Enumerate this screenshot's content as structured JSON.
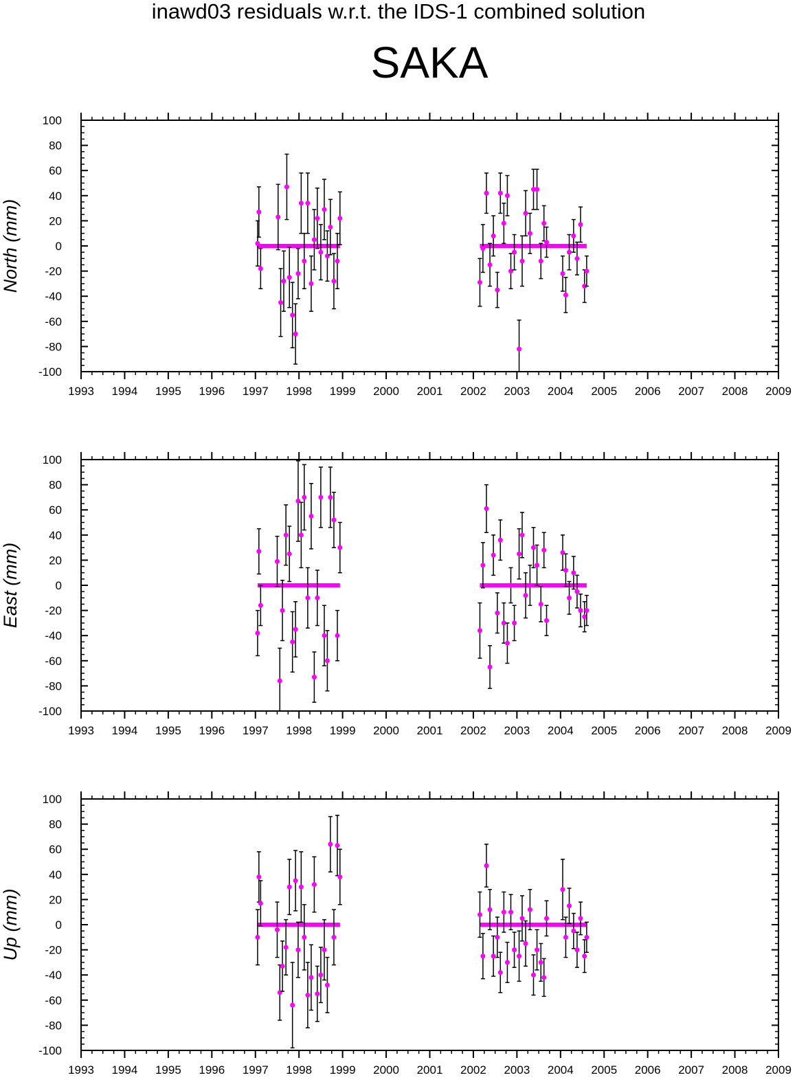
{
  "title": "inawd03 residuals w.r.t. the IDS-1 combined solution",
  "subtitle": "SAKA",
  "colors": {
    "marker": "#ff00ff",
    "errorbar": "#000000",
    "frame": "#000000"
  },
  "chart_data": [
    {
      "type": "scatter",
      "ylabel": "North (mm)",
      "xlim": [
        1993,
        2009
      ],
      "ylim": [
        -100,
        100
      ],
      "xticks": [
        "1993",
        "1994",
        "1995",
        "1996",
        "1997",
        "1998",
        "1999",
        "2000",
        "2001",
        "2002",
        "2003",
        "2004",
        "2005",
        "2006",
        "2007",
        "2008",
        "2009"
      ],
      "yticks": [
        "-100",
        "-80",
        "-60",
        "-40",
        "-20",
        "0",
        "20",
        "40",
        "60",
        "80",
        "100"
      ],
      "series": [
        {
          "x": [
            1997.05,
            1997.08,
            1997.12,
            1997.52,
            1997.58,
            1997.65,
            1997.72,
            1997.78,
            1997.85,
            1997.92,
            1997.98,
            1998.05,
            1998.12,
            1998.2,
            1998.28,
            1998.35,
            1998.42,
            1998.5,
            1998.58,
            1998.65,
            1998.72,
            1998.8,
            1998.88,
            1998.94,
            2002.15,
            2002.22,
            2002.3,
            2002.38,
            2002.46,
            2002.55,
            2002.62,
            2002.7,
            2002.78,
            2002.86,
            2002.94,
            2003.05,
            2003.12,
            2003.2,
            2003.3,
            2003.38,
            2003.46,
            2003.55,
            2003.62,
            2003.68,
            2004.05,
            2004.12,
            2004.2,
            2004.3,
            2004.38,
            2004.46,
            2004.55,
            2004.6
          ],
          "y": [
            2,
            27,
            -18,
            23,
            -45,
            -28,
            47,
            -25,
            -55,
            -70,
            -22,
            34,
            -12,
            34,
            -30,
            5,
            22,
            -5,
            29,
            -8,
            15,
            -28,
            -12,
            22,
            -29,
            -2,
            42,
            -15,
            8,
            -35,
            42,
            18,
            40,
            -20,
            -5,
            -82,
            -12,
            26,
            10,
            45,
            45,
            -12,
            18,
            3,
            -22,
            -39,
            -5,
            8,
            -10,
            17,
            -32,
            -20
          ],
          "err": [
            18,
            20,
            16,
            26,
            27,
            24,
            26,
            24,
            26,
            24,
            20,
            24,
            22,
            24,
            22,
            24,
            24,
            22,
            24,
            20,
            22,
            22,
            22,
            21,
            19,
            19,
            16,
            17,
            16,
            14,
            16,
            16,
            16,
            14,
            14,
            23,
            20,
            18,
            16,
            16,
            16,
            14,
            14,
            12,
            14,
            14,
            14,
            13,
            13,
            14,
            13,
            12
          ]
        }
      ]
    },
    {
      "type": "scatter",
      "ylabel": "East (mm)",
      "xlim": [
        1993,
        2009
      ],
      "ylim": [
        -100,
        100
      ],
      "xticks": [
        "1993",
        "1994",
        "1995",
        "1996",
        "1997",
        "1998",
        "1999",
        "2000",
        "2001",
        "2002",
        "2003",
        "2004",
        "2005",
        "2006",
        "2007",
        "2008",
        "2009"
      ],
      "yticks": [
        "-100",
        "-80",
        "-60",
        "-40",
        "-20",
        "0",
        "20",
        "40",
        "60",
        "80",
        "100"
      ],
      "series": [
        {
          "x": [
            1997.05,
            1997.08,
            1997.12,
            1997.5,
            1997.56,
            1997.62,
            1997.7,
            1997.78,
            1997.85,
            1997.92,
            1997.98,
            1998.05,
            1998.12,
            1998.2,
            1998.28,
            1998.35,
            1998.42,
            1998.5,
            1998.58,
            1998.65,
            1998.72,
            1998.8,
            1998.88,
            1998.94,
            2002.15,
            2002.22,
            2002.3,
            2002.38,
            2002.46,
            2002.55,
            2002.62,
            2002.7,
            2002.78,
            2002.86,
            2002.94,
            2003.05,
            2003.12,
            2003.2,
            2003.3,
            2003.38,
            2003.46,
            2003.55,
            2003.62,
            2003.68,
            2004.05,
            2004.12,
            2004.2,
            2004.3,
            2004.38,
            2004.46,
            2004.55,
            2004.6
          ],
          "y": [
            -38,
            27,
            -16,
            19,
            -76,
            -20,
            40,
            25,
            -45,
            -35,
            67,
            40,
            70,
            -10,
            55,
            -73,
            -10,
            70,
            -40,
            -60,
            70,
            52,
            -40,
            30,
            -36,
            16,
            61,
            -65,
            24,
            -22,
            36,
            -30,
            -46,
            0,
            -30,
            25,
            40,
            -8,
            0,
            30,
            16,
            -15,
            28,
            -28,
            26,
            12,
            -10,
            10,
            -5,
            -20,
            -25,
            -20
          ],
          "err": [
            18,
            18,
            16,
            20,
            26,
            24,
            24,
            22,
            24,
            22,
            32,
            26,
            26,
            24,
            26,
            20,
            22,
            24,
            24,
            24,
            24,
            22,
            20,
            20,
            22,
            18,
            19,
            17,
            16,
            16,
            16,
            16,
            16,
            14,
            14,
            20,
            18,
            18,
            16,
            16,
            16,
            14,
            14,
            12,
            14,
            13,
            13,
            13,
            13,
            13,
            12,
            12
          ]
        }
      ]
    },
    {
      "type": "scatter",
      "ylabel": "Up (mm)",
      "xlim": [
        1993,
        2009
      ],
      "ylim": [
        -100,
        100
      ],
      "xticks": [
        "1993",
        "1994",
        "1995",
        "1996",
        "1997",
        "1998",
        "1999",
        "2000",
        "2001",
        "2002",
        "2003",
        "2004",
        "2005",
        "2006",
        "2007",
        "2008",
        "2009"
      ],
      "yticks": [
        "-100",
        "-80",
        "-60",
        "-40",
        "-20",
        "0",
        "20",
        "40",
        "60",
        "80",
        "100"
      ],
      "series": [
        {
          "x": [
            1997.05,
            1997.08,
            1997.12,
            1997.5,
            1997.56,
            1997.62,
            1997.7,
            1997.78,
            1997.85,
            1997.92,
            1997.98,
            1998.05,
            1998.12,
            1998.2,
            1998.28,
            1998.35,
            1998.42,
            1998.5,
            1998.58,
            1998.65,
            1998.72,
            1998.8,
            1998.88,
            1998.94,
            2002.15,
            2002.22,
            2002.3,
            2002.38,
            2002.46,
            2002.55,
            2002.62,
            2002.7,
            2002.78,
            2002.86,
            2002.94,
            2003.05,
            2003.12,
            2003.2,
            2003.3,
            2003.38,
            2003.46,
            2003.55,
            2003.62,
            2003.68,
            2004.05,
            2004.12,
            2004.2,
            2004.3,
            2004.38,
            2004.46,
            2004.55,
            2004.6
          ],
          "y": [
            -10,
            38,
            17,
            -4,
            -54,
            -33,
            -18,
            30,
            -64,
            35,
            -20,
            30,
            -10,
            -56,
            -42,
            32,
            -55,
            -40,
            -20,
            -48,
            64,
            -10,
            63,
            38,
            8,
            -25,
            47,
            12,
            -25,
            -10,
            -38,
            10,
            -30,
            10,
            -20,
            -25,
            5,
            -15,
            12,
            -40,
            -20,
            -30,
            -42,
            5,
            28,
            -10,
            15,
            -5,
            -20,
            5,
            -25,
            -10
          ],
          "err": [
            22,
            20,
            18,
            22,
            22,
            20,
            22,
            22,
            34,
            24,
            22,
            28,
            26,
            26,
            26,
            22,
            22,
            22,
            24,
            22,
            22,
            22,
            24,
            22,
            18,
            18,
            17,
            16,
            16,
            16,
            16,
            16,
            16,
            14,
            14,
            20,
            18,
            18,
            16,
            16,
            16,
            15,
            15,
            14,
            24,
            16,
            14,
            14,
            14,
            13,
            13,
            12
          ]
        }
      ]
    }
  ]
}
